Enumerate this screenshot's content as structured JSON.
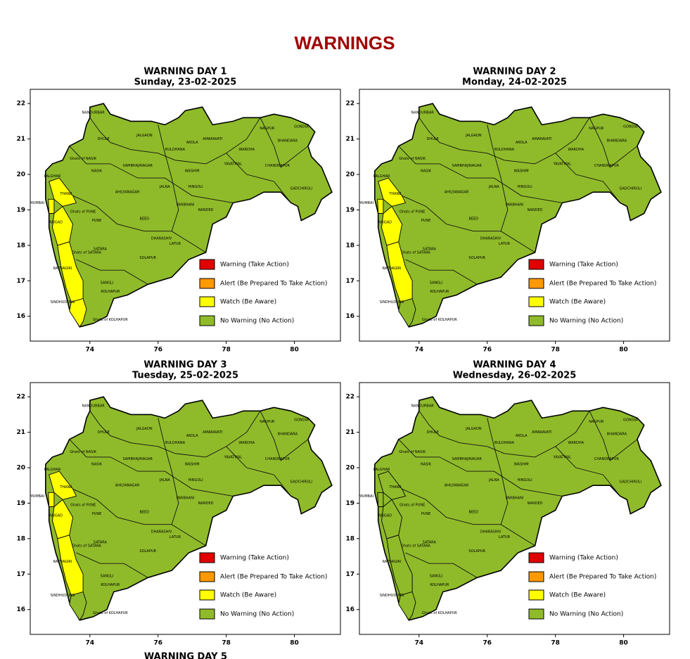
{
  "header": {
    "title": "WARNINGS"
  },
  "map": {
    "xlim": [
      72.25,
      81.35
    ],
    "ylim": [
      15.3,
      22.4
    ],
    "xticks": [
      74,
      76,
      78,
      80
    ],
    "yticks": [
      16,
      17,
      18,
      19,
      20,
      21,
      22
    ],
    "districts": [
      "NANDURBAR",
      "DHULE",
      "JALGAON",
      "BULDHANA",
      "AKOLA",
      "AMARAVATI",
      "NAGPUR",
      "GONDIA",
      "BHANDARA",
      "WARDHA",
      "YAVATMAL",
      "CHANDRAPUR",
      "GADCHIROLI",
      "PALGHAR",
      "THANE",
      "MUMBAI",
      "Ghats of NASIK",
      "NASIK",
      "SAMBHAJINAGAR",
      "WASHIM",
      "HINGOLI",
      "JALNA",
      "AHILYANAGAR",
      "PARBHANI",
      "NANDED",
      "Ghats of PUNE",
      "PUNE",
      "RAIGAD",
      "BEED",
      "DHARASHIV",
      "LATUR",
      "SATARA",
      "Ghats of SATARA",
      "SOLAPUR",
      "RATNAGIRI",
      "SANGLI",
      "KOLHAPUR",
      "SINDHUDURG",
      "Ghats of KOLHAPUR"
    ],
    "legend": [
      {
        "label": "Warning (Take Action)",
        "color": "#e00000"
      },
      {
        "label": "Alert (Be Prepared To Take Action)",
        "color": "#ff9900"
      },
      {
        "label": "Watch (Be Aware)",
        "color": "#ffff00"
      },
      {
        "label": "No Warning (No Action)",
        "color": "#8fbb2a"
      }
    ]
  },
  "panels": [
    {
      "title": "WARNING DAY 1",
      "subtitle": "Sunday, 23-02-2025",
      "watch": [
        "THANE",
        "MUMBAI",
        "RAIGAD",
        "RATNAGIRI",
        "SINDHUDURG"
      ]
    },
    {
      "title": "WARNING DAY 2",
      "subtitle": "Monday, 24-02-2025",
      "watch": [
        "THANE",
        "MUMBAI",
        "RAIGAD",
        "RATNAGIRI"
      ]
    },
    {
      "title": "WARNING DAY 3",
      "subtitle": "Tuesday, 25-02-2025",
      "watch": [
        "THANE",
        "MUMBAI",
        "RAIGAD",
        "RATNAGIRI"
      ]
    },
    {
      "title": "WARNING DAY 4",
      "subtitle": "Wednesday, 26-02-2025",
      "watch": []
    }
  ],
  "next_panel": {
    "title": "WARNING DAY 5"
  }
}
